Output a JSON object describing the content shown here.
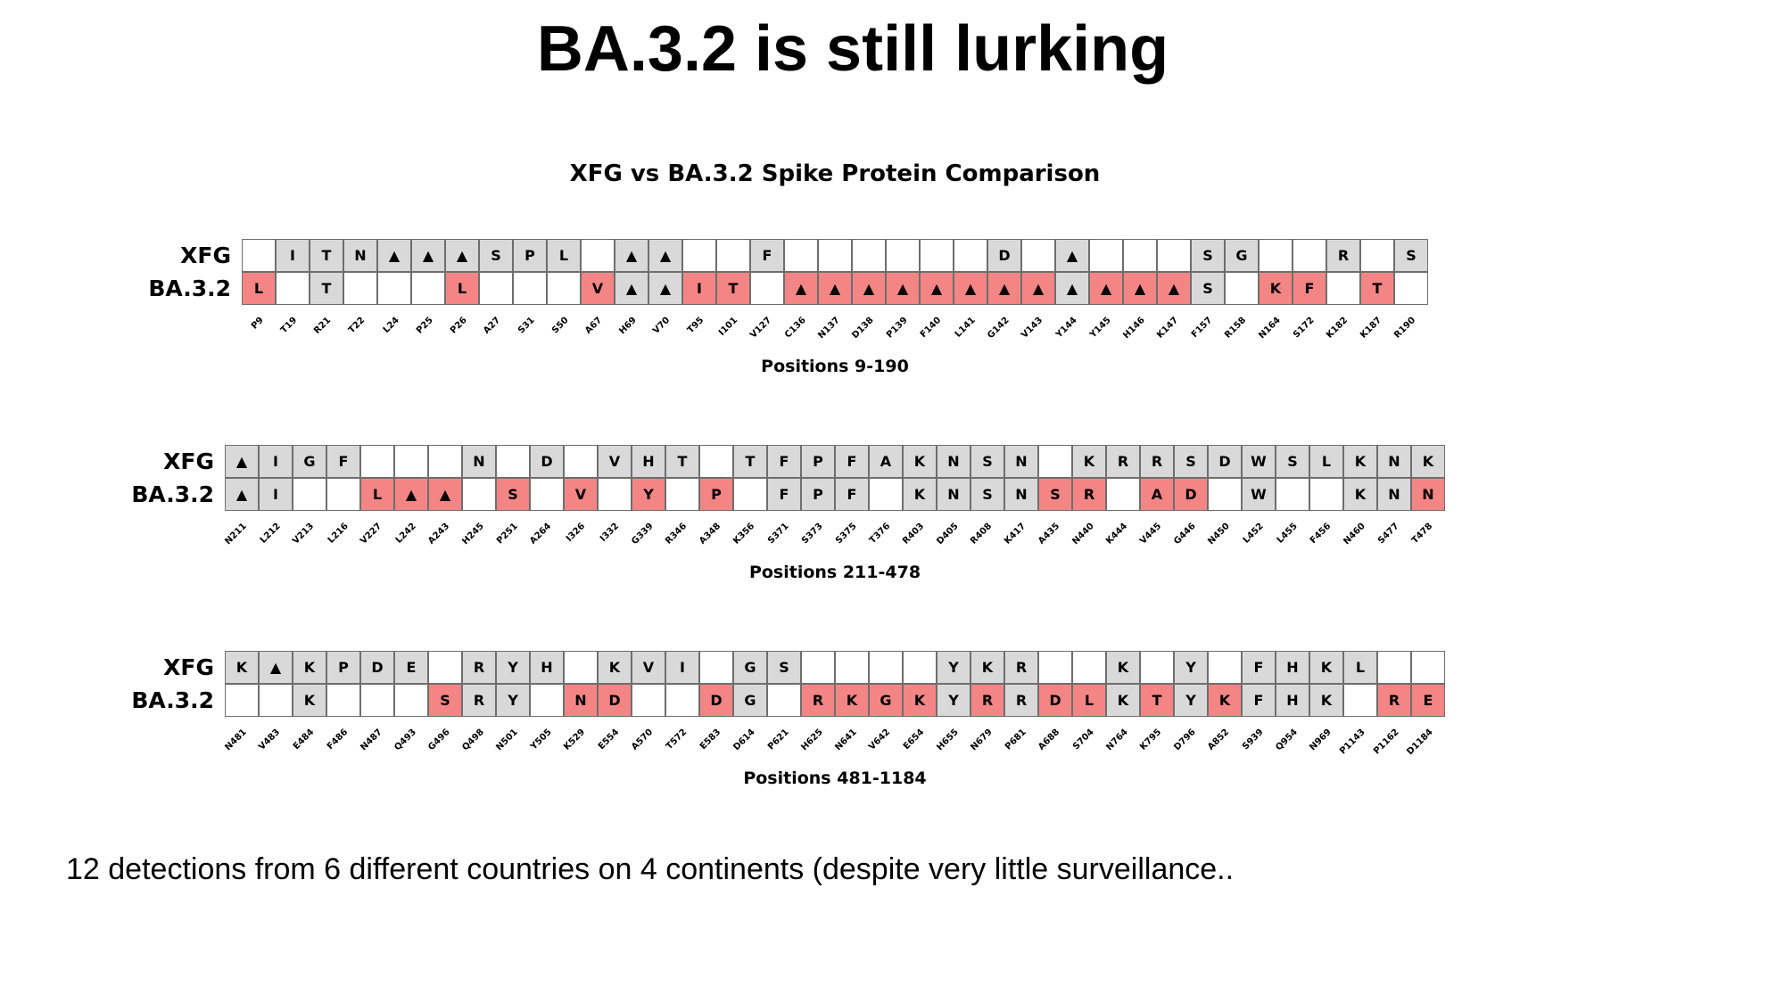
{
  "slide_title": "BA.3.2 is still lurking",
  "footer_text": "12 detections from 6 different countries on 4 continents (despite very little surveillance..",
  "colors": {
    "shared": "#d9d9d9",
    "unique": "#f48585",
    "empty": "#ffffff",
    "border": "#6e6e6e"
  },
  "legend_glyphs": {
    "deletion": "▲"
  },
  "chart_data": {
    "type": "table",
    "title": "XFG vs BA.3.2 Spike Protein Comparison",
    "row_labels": [
      "XFG",
      "BA.3.2"
    ],
    "panels": [
      {
        "xlabel": "Positions 9-190",
        "positions": [
          "P9",
          "T19",
          "R21",
          "T22",
          "L24",
          "P25",
          "P26",
          "A27",
          "S31",
          "S50",
          "A67",
          "H69",
          "V70",
          "T95",
          "I101",
          "V127",
          "C136",
          "N137",
          "D138",
          "P139",
          "F140",
          "L141",
          "G142",
          "V143",
          "Y144",
          "Y145",
          "H146",
          "K147",
          "F157",
          "R158",
          "N164",
          "S172",
          "K182",
          "K187",
          "R190"
        ],
        "xfg": [
          "",
          "I",
          "T",
          "N",
          "▲",
          "▲",
          "▲",
          "S",
          "P",
          "L",
          "",
          "▲",
          "▲",
          "",
          "",
          "F",
          "",
          "",
          "",
          "",
          "",
          "",
          "D",
          "",
          "▲",
          "",
          "",
          "",
          "S",
          "G",
          "",
          "",
          "R",
          "",
          "S"
        ],
        "xfg_state": [
          "e",
          "s",
          "s",
          "s",
          "s",
          "s",
          "s",
          "s",
          "s",
          "s",
          "e",
          "s",
          "s",
          "e",
          "e",
          "s",
          "e",
          "e",
          "e",
          "e",
          "e",
          "e",
          "s",
          "e",
          "s",
          "e",
          "e",
          "e",
          "s",
          "s",
          "e",
          "e",
          "s",
          "e",
          "s"
        ],
        "ba32": [
          "L",
          "",
          "T",
          "",
          "",
          "",
          "L",
          "",
          "",
          "",
          "V",
          "▲",
          "▲",
          "I",
          "T",
          "",
          "▲",
          "▲",
          "▲",
          "▲",
          "▲",
          "▲",
          "▲",
          "▲",
          "▲",
          "▲",
          "▲",
          "▲",
          "S",
          "",
          "K",
          "F",
          "",
          "T",
          ""
        ],
        "ba32_state": [
          "u",
          "e",
          "s",
          "e",
          "e",
          "e",
          "u",
          "e",
          "e",
          "e",
          "u",
          "s",
          "s",
          "u",
          "u",
          "e",
          "u",
          "u",
          "u",
          "u",
          "u",
          "u",
          "u",
          "u",
          "s",
          "u",
          "u",
          "u",
          "s",
          "e",
          "u",
          "u",
          "e",
          "u",
          "e"
        ]
      },
      {
        "xlabel": "Positions 211-478",
        "positions": [
          "N211",
          "L212",
          "V213",
          "L216",
          "V227",
          "L242",
          "A243",
          "H245",
          "P251",
          "A264",
          "I326",
          "I332",
          "G339",
          "R346",
          "A348",
          "K356",
          "S371",
          "S373",
          "S375",
          "T376",
          "R403",
          "D405",
          "R408",
          "K417",
          "A435",
          "N440",
          "K444",
          "V445",
          "G446",
          "N450",
          "L452",
          "L455",
          "F456",
          "N460",
          "S477",
          "T478"
        ],
        "xfg": [
          "▲",
          "I",
          "G",
          "F",
          "",
          "",
          "",
          "N",
          "",
          "D",
          "",
          "V",
          "H",
          "T",
          "",
          "T",
          "F",
          "P",
          "F",
          "A",
          "K",
          "N",
          "S",
          "N",
          "",
          "K",
          "R",
          "R",
          "S",
          "D",
          "W",
          "S",
          "L",
          "K",
          "N",
          "K"
        ],
        "xfg_state": [
          "s",
          "s",
          "s",
          "s",
          "e",
          "e",
          "e",
          "s",
          "e",
          "s",
          "e",
          "s",
          "s",
          "s",
          "e",
          "s",
          "s",
          "s",
          "s",
          "s",
          "s",
          "s",
          "s",
          "s",
          "e",
          "s",
          "s",
          "s",
          "s",
          "s",
          "s",
          "s",
          "s",
          "s",
          "s",
          "s"
        ],
        "ba32": [
          "▲",
          "I",
          "",
          "",
          "L",
          "▲",
          "▲",
          "",
          "S",
          "",
          "V",
          "",
          "Y",
          "",
          "P",
          "",
          "F",
          "P",
          "F",
          "",
          "K",
          "N",
          "S",
          "N",
          "S",
          "R",
          "",
          "A",
          "D",
          "",
          "W",
          "",
          "",
          "K",
          "N",
          "N"
        ],
        "ba32_state": [
          "s",
          "s",
          "e",
          "e",
          "u",
          "u",
          "u",
          "e",
          "u",
          "e",
          "u",
          "e",
          "u",
          "e",
          "u",
          "e",
          "s",
          "s",
          "s",
          "e",
          "s",
          "s",
          "s",
          "s",
          "u",
          "u",
          "e",
          "u",
          "u",
          "e",
          "s",
          "e",
          "e",
          "s",
          "s",
          "u"
        ]
      },
      {
        "xlabel": "Positions 481-1184",
        "positions": [
          "N481",
          "V483",
          "E484",
          "F486",
          "N487",
          "Q493",
          "G496",
          "Q498",
          "N501",
          "Y505",
          "K529",
          "E554",
          "A570",
          "T572",
          "E583",
          "D614",
          "P621",
          "H625",
          "N641",
          "V642",
          "E654",
          "H655",
          "N679",
          "P681",
          "A688",
          "S704",
          "N764",
          "K795",
          "D796",
          "A852",
          "S939",
          "Q954",
          "N969",
          "P1143",
          "P1162",
          "D1184"
        ],
        "xfg": [
          "K",
          "▲",
          "K",
          "P",
          "D",
          "E",
          "",
          "R",
          "Y",
          "H",
          "",
          "K",
          "V",
          "I",
          "",
          "G",
          "S",
          "",
          "",
          "",
          "",
          "Y",
          "K",
          "R",
          "",
          "",
          "K",
          "",
          "Y",
          "",
          "F",
          "H",
          "K",
          "L",
          "",
          ""
        ],
        "xfg_state": [
          "s",
          "s",
          "s",
          "s",
          "s",
          "s",
          "e",
          "s",
          "s",
          "s",
          "e",
          "s",
          "s",
          "s",
          "e",
          "s",
          "s",
          "e",
          "e",
          "e",
          "e",
          "s",
          "s",
          "s",
          "e",
          "e",
          "s",
          "e",
          "s",
          "e",
          "s",
          "s",
          "s",
          "s",
          "e",
          "e"
        ],
        "ba32": [
          "",
          "",
          "K",
          "",
          "",
          "",
          "S",
          "R",
          "Y",
          "",
          "N",
          "D",
          "",
          "",
          "D",
          "G",
          "",
          "R",
          "K",
          "G",
          "K",
          "Y",
          "R",
          "R",
          "D",
          "L",
          "K",
          "T",
          "Y",
          "K",
          "F",
          "H",
          "K",
          "",
          "R",
          "E"
        ],
        "ba32_state": [
          "e",
          "e",
          "s",
          "e",
          "e",
          "e",
          "u",
          "s",
          "s",
          "e",
          "u",
          "u",
          "e",
          "e",
          "u",
          "s",
          "e",
          "u",
          "u",
          "u",
          "u",
          "s",
          "u",
          "s",
          "u",
          "u",
          "s",
          "u",
          "s",
          "u",
          "s",
          "s",
          "s",
          "e",
          "u",
          "u"
        ]
      }
    ]
  }
}
